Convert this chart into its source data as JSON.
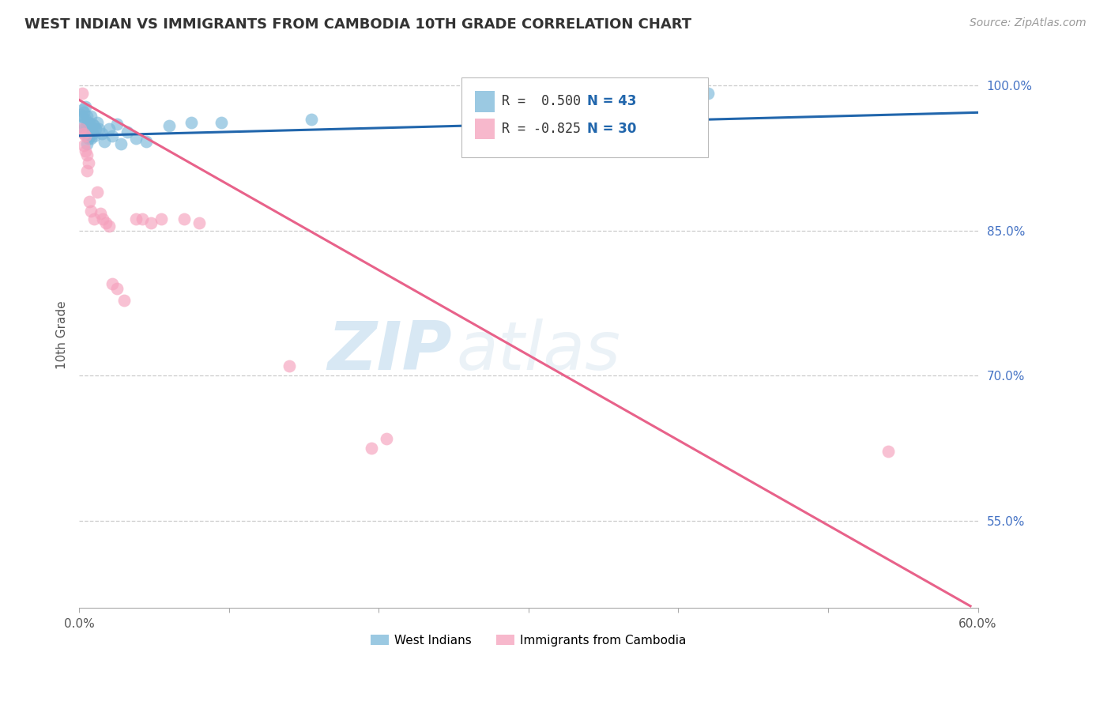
{
  "title": "WEST INDIAN VS IMMIGRANTS FROM CAMBODIA 10TH GRADE CORRELATION CHART",
  "source": "Source: ZipAtlas.com",
  "ylabel": "10th Grade",
  "xlim": [
    0.0,
    0.6
  ],
  "ylim": [
    0.46,
    1.025
  ],
  "xticks": [
    0.0,
    0.1,
    0.2,
    0.3,
    0.4,
    0.5,
    0.6
  ],
  "xtick_labels": [
    "0.0%",
    "",
    "",
    "",
    "",
    "",
    "60.0%"
  ],
  "yticks_right": [
    1.0,
    0.85,
    0.7,
    0.55
  ],
  "ytick_labels_right": [
    "100.0%",
    "85.0%",
    "70.0%",
    "55.0%"
  ],
  "legend_blue_r": "R =  0.500",
  "legend_blue_n": "N = 43",
  "legend_pink_r": "R = -0.825",
  "legend_pink_n": "N = 30",
  "legend_label_blue": "West Indians",
  "legend_label_pink": "Immigrants from Cambodia",
  "blue_color": "#7ab8d9",
  "pink_color": "#f5a0bc",
  "line_blue_color": "#2166ac",
  "line_pink_color": "#e8628a",
  "watermark_zip": "ZIP",
  "watermark_atlas": "atlas",
  "blue_scatter_x": [
    0.001,
    0.002,
    0.002,
    0.003,
    0.003,
    0.003,
    0.004,
    0.004,
    0.004,
    0.005,
    0.005,
    0.005,
    0.005,
    0.006,
    0.006,
    0.006,
    0.007,
    0.007,
    0.008,
    0.008,
    0.008,
    0.009,
    0.009,
    0.01,
    0.01,
    0.011,
    0.012,
    0.013,
    0.015,
    0.017,
    0.02,
    0.022,
    0.025,
    0.028,
    0.032,
    0.038,
    0.045,
    0.06,
    0.075,
    0.095,
    0.155,
    0.27,
    0.42
  ],
  "blue_scatter_y": [
    0.97,
    0.975,
    0.968,
    0.972,
    0.96,
    0.955,
    0.978,
    0.965,
    0.952,
    0.968,
    0.958,
    0.948,
    0.94,
    0.962,
    0.952,
    0.945,
    0.96,
    0.948,
    0.968,
    0.955,
    0.945,
    0.96,
    0.95,
    0.958,
    0.948,
    0.955,
    0.962,
    0.955,
    0.95,
    0.942,
    0.955,
    0.948,
    0.96,
    0.94,
    0.952,
    0.945,
    0.942,
    0.958,
    0.962,
    0.962,
    0.965,
    0.958,
    0.992
  ],
  "pink_scatter_x": [
    0.001,
    0.002,
    0.003,
    0.003,
    0.004,
    0.004,
    0.005,
    0.005,
    0.006,
    0.007,
    0.008,
    0.01,
    0.012,
    0.014,
    0.016,
    0.018,
    0.02,
    0.022,
    0.025,
    0.03,
    0.038,
    0.042,
    0.048,
    0.055,
    0.07,
    0.08,
    0.14,
    0.195,
    0.205,
    0.54
  ],
  "pink_scatter_y": [
    0.955,
    0.992,
    0.95,
    0.938,
    0.948,
    0.932,
    0.928,
    0.912,
    0.92,
    0.88,
    0.87,
    0.862,
    0.89,
    0.868,
    0.862,
    0.858,
    0.855,
    0.795,
    0.79,
    0.778,
    0.862,
    0.862,
    0.858,
    0.862,
    0.862,
    0.858,
    0.71,
    0.625,
    0.635,
    0.622
  ],
  "blue_line_x": [
    0.0,
    0.6
  ],
  "blue_line_y": [
    0.948,
    0.972
  ],
  "pink_line_x": [
    0.0,
    0.595
  ],
  "pink_line_y": [
    0.985,
    0.462
  ]
}
